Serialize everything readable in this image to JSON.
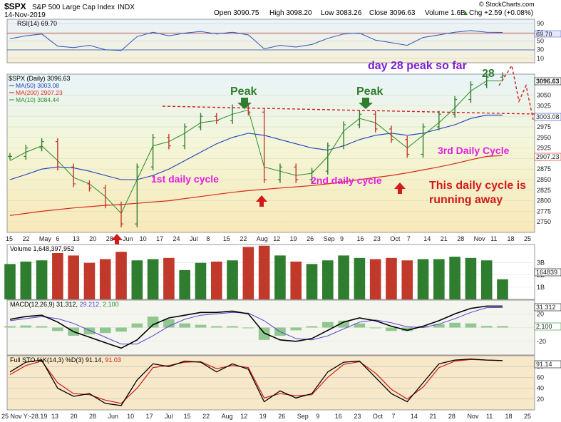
{
  "header": {
    "symbol": "$SPX",
    "name": "S&P 500 Large Cap Index",
    "exchange": "INDX",
    "date": "14-Nov-2019",
    "open": "Open 3090.75",
    "high": "High 3098.20",
    "low": "Low 3083.26",
    "close": "Close 3096.63",
    "volume": "Volume 1.6B",
    "chg": "Chg +2.59 (+0.08%)",
    "change_arrow": "▲",
    "watermark": "© StockCharts.com"
  },
  "rsi_panel": {
    "label": "RSI(14) 69.70",
    "value_tag": "69.70",
    "ticks": [
      "90",
      "70",
      "50",
      "30",
      "10"
    ]
  },
  "price_panel": {
    "legend_title": "$SPX (Daily) 3096.63",
    "ma50": "MA(50) 3003.08",
    "ma200": "MA(200) 2907.23",
    "ma10": "MA(10) 3084.44",
    "tag_last": "3096.63",
    "tag_ma50": "3003.08",
    "tag_ma200": "2907.23",
    "ticks": [
      "3050",
      "3025",
      "3000",
      "2975",
      "2950",
      "2925",
      "2900",
      "2875",
      "2850",
      "2825",
      "2800",
      "2775",
      "2750"
    ]
  },
  "annotations": {
    "peak1": "Peak",
    "peak2": "Peak",
    "day28": "day 28 peak so far",
    "num28": "28",
    "cycle1": "1st daily cycle",
    "cycle2": "2nd daily cycle",
    "cycle3": "3rd Daily Cycle",
    "runaway_line1": "This daily cycle is",
    "runaway_line2": "running away"
  },
  "volume_panel": {
    "label": "Volume 1,648,397,952",
    "value_tag": "164839",
    "ticks": [
      "3B",
      "2B",
      "1B"
    ]
  },
  "macd_panel": {
    "label_prefix": "MACD(12,26,9) 31.312, ",
    "signal_value": "29.212",
    "hist_value": ", 2.100",
    "tag_macd": "31.312",
    "tag_hist": "2.100",
    "ticks": [
      "20",
      "0",
      "-20"
    ]
  },
  "sto_panel": {
    "label_prefix": "Full STO %K(14,3) %D(3) 91.14, ",
    "d_value": "91.03",
    "tag": "91.14",
    "ticks": [
      "80",
      "60",
      "40",
      "20"
    ]
  },
  "x_axis": {
    "top_labels": [
      "15",
      "22",
      "May",
      "6",
      "13",
      "20",
      "28",
      "Jun",
      "10",
      "17",
      "24",
      "Jul",
      "8",
      "15",
      "22",
      "Aug",
      "12",
      "19",
      "26",
      "Sep",
      "9",
      "16",
      "23",
      "Oct",
      "7",
      "14",
      "21",
      "28",
      "Nov",
      "11",
      "18",
      "25"
    ],
    "bottom_labels": [
      "25 Nov Y:-28.19",
      "13",
      "20",
      "28",
      "Jun",
      "10",
      "17",
      "Jul",
      "15",
      "22",
      "Aug",
      "12",
      "19",
      "26",
      "Sep",
      "9",
      "16",
      "23",
      "Oct",
      "7",
      "14",
      "21",
      "28",
      "Nov",
      "11",
      "18",
      "25"
    ]
  },
  "chart_data": {
    "type": "line",
    "title": "$SPX S&P 500 Large Cap Index INDX",
    "date_range": [
      "2019-04-15",
      "2019-11-14"
    ],
    "x": [
      "Apr 15",
      "Apr 22",
      "Apr 29",
      "May 6",
      "May 13",
      "May 20",
      "May 28",
      "Jun 3",
      "Jun 10",
      "Jun 17",
      "Jun 24",
      "Jul 1",
      "Jul 8",
      "Jul 15",
      "Jul 22",
      "Jul 29",
      "Aug 5",
      "Aug 12",
      "Aug 19",
      "Aug 26",
      "Sep 3",
      "Sep 9",
      "Sep 16",
      "Sep 23",
      "Sep 30",
      "Oct 7",
      "Oct 14",
      "Oct 21",
      "Oct 28",
      "Nov 4",
      "Nov 11",
      "Nov 14"
    ],
    "series": [
      {
        "name": "$SPX (Daily)",
        "values": [
          2905,
          2925,
          2940,
          2880,
          2840,
          2830,
          2790,
          2745,
          2880,
          2950,
          2930,
          2975,
          3000,
          2990,
          3020,
          3010,
          2850,
          2880,
          2850,
          2870,
          2930,
          2980,
          3005,
          2970,
          2945,
          2910,
          2975,
          3005,
          3040,
          3075,
          3093,
          3096
        ]
      },
      {
        "name": "MA(50)",
        "values": [
          2850,
          2862,
          2875,
          2880,
          2878,
          2870,
          2860,
          2850,
          2850,
          2860,
          2875,
          2895,
          2915,
          2935,
          2950,
          2960,
          2955,
          2945,
          2935,
          2925,
          2920,
          2930,
          2945,
          2955,
          2960,
          2955,
          2960,
          2970,
          2980,
          2995,
          3003,
          3003
        ]
      },
      {
        "name": "MA(200)",
        "values": [
          2765,
          2770,
          2775,
          2779,
          2783,
          2786,
          2789,
          2791,
          2794,
          2797,
          2800,
          2805,
          2810,
          2815,
          2820,
          2824,
          2827,
          2830,
          2833,
          2836,
          2840,
          2845,
          2850,
          2855,
          2860,
          2866,
          2873,
          2880,
          2888,
          2897,
          2905,
          2907
        ]
      },
      {
        "name": "MA(10)",
        "values": [
          2895,
          2915,
          2930,
          2895,
          2855,
          2840,
          2810,
          2770,
          2850,
          2930,
          2940,
          2960,
          2985,
          2990,
          3005,
          3015,
          2880,
          2870,
          2860,
          2865,
          2905,
          2965,
          2995,
          2985,
          2955,
          2925,
          2955,
          2985,
          3020,
          3060,
          3084,
          3084
        ]
      }
    ],
    "rsi": [
      55,
      62,
      66,
      38,
      35,
      40,
      30,
      28,
      60,
      70,
      62,
      68,
      72,
      66,
      70,
      64,
      32,
      40,
      36,
      42,
      56,
      66,
      68,
      52,
      46,
      40,
      58,
      64,
      70,
      74,
      70,
      69.7
    ],
    "macd": [
      12,
      16,
      18,
      8,
      -6,
      -14,
      -22,
      -30,
      -18,
      4,
      14,
      18,
      22,
      22,
      24,
      20,
      -8,
      -18,
      -20,
      -16,
      -4,
      8,
      14,
      10,
      2,
      -4,
      2,
      10,
      20,
      28,
      31.3,
      31.3
    ],
    "macd_signal": [
      10,
      13,
      16,
      13,
      6,
      -4,
      -14,
      -24,
      -24,
      -12,
      2,
      12,
      18,
      20,
      22,
      21,
      10,
      -6,
      -16,
      -18,
      -12,
      -2,
      8,
      11,
      7,
      1,
      0,
      5,
      13,
      22,
      29,
      29.2
    ],
    "volume_billions": [
      2.9,
      3.1,
      3.2,
      3.8,
      3.6,
      3.0,
      3.3,
      3.9,
      3.2,
      3.3,
      3.4,
      2.4,
      3.0,
      3.1,
      3.2,
      4.3,
      4.4,
      3.6,
      3.1,
      2.9,
      3.2,
      3.6,
      3.4,
      3.3,
      3.4,
      3.2,
      3.3,
      3.3,
      3.5,
      3.4,
      3.2,
      1.65
    ],
    "sto_k": [
      70,
      88,
      92,
      40,
      25,
      30,
      12,
      8,
      55,
      85,
      80,
      90,
      88,
      70,
      85,
      75,
      15,
      35,
      22,
      30,
      70,
      88,
      90,
      60,
      30,
      15,
      50,
      85,
      92,
      94,
      92,
      91.1
    ],
    "sto_d": [
      65,
      82,
      90,
      50,
      30,
      28,
      18,
      12,
      40,
      78,
      82,
      88,
      89,
      76,
      82,
      78,
      22,
      30,
      26,
      28,
      60,
      84,
      89,
      68,
      38,
      20,
      42,
      78,
      90,
      93,
      92,
      91.0
    ],
    "ylim_price": [
      2725,
      3100
    ],
    "ylim_rsi": [
      0,
      100
    ],
    "ylim_macd": [
      -40,
      40
    ],
    "ylim_volume": [
      0,
      4.5
    ],
    "ylim_sto": [
      0,
      100
    ]
  },
  "colors": {
    "ma50": "#1f3fbf",
    "ma200": "#d62a1a",
    "ma10": "#2a8c2a",
    "up_bar": "#2f7d2f",
    "down_bar": "#c0392b",
    "annotation_pink": "#e020e0",
    "annotation_red": "#d11a1a",
    "annotation_green": "#2f7d2f",
    "annotation_purple": "#7a1fd1"
  }
}
